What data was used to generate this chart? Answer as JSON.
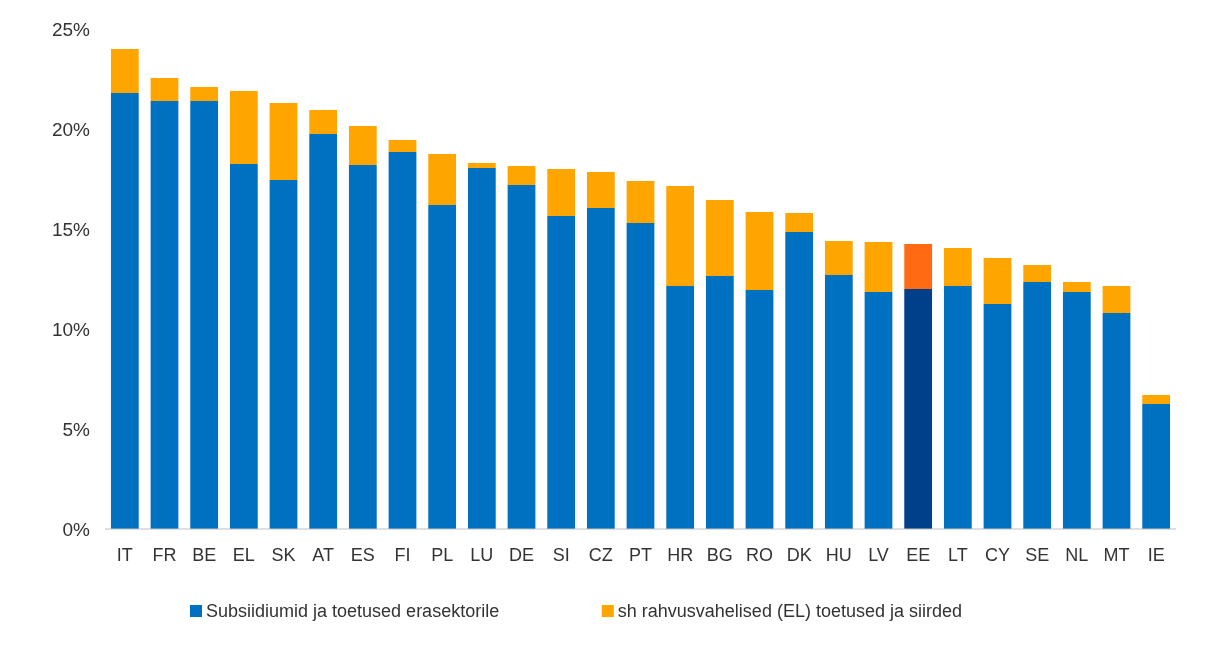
{
  "chart_data": {
    "type": "bar",
    "stacked": true,
    "legend": "bottom",
    "grid": false,
    "categories": [
      "IT",
      "FR",
      "BE",
      "EL",
      "SK",
      "AT",
      "ES",
      "FI",
      "PL",
      "LU",
      "DE",
      "SI",
      "CZ",
      "PT",
      "HR",
      "BG",
      "RO",
      "DK",
      "HU",
      "LV",
      "EE",
      "LT",
      "CY",
      "SE",
      "NL",
      "MT",
      "IE"
    ],
    "series": [
      {
        "name": "Subsiidiumid ja toetused erasektorile",
        "color": "#0070c0",
        "colors": [
          "#0070c0",
          "#0070c0",
          "#0070c0",
          "#0070c0",
          "#0070c0",
          "#0070c0",
          "#0070c0",
          "#0070c0",
          "#0070c0",
          "#0070c0",
          "#0070c0",
          "#0070c0",
          "#0070c0",
          "#0070c0",
          "#0070c0",
          "#0070c0",
          "#0070c0",
          "#0070c0",
          "#0070c0",
          "#0070c0",
          "#003f8a",
          "#0070c0",
          "#0070c0",
          "#0070c0",
          "#0070c0",
          "#0070c0",
          "#0070c0"
        ],
        "values": [
          21.8,
          21.4,
          21.4,
          18.25,
          17.45,
          19.75,
          18.2,
          18.85,
          16.2,
          18.05,
          17.2,
          15.65,
          16.05,
          15.3,
          12.15,
          12.65,
          11.95,
          14.85,
          12.7,
          11.85,
          12.0,
          12.15,
          11.25,
          12.35,
          11.85,
          10.8,
          6.25
        ]
      },
      {
        "name": "sh rahvusvahelised (EL) toetused ja siirded",
        "color": "#ffa500",
        "colors": [
          "#ffa500",
          "#ffa500",
          "#ffa500",
          "#ffa500",
          "#ffa500",
          "#ffa500",
          "#ffa500",
          "#ffa500",
          "#ffa500",
          "#ffa500",
          "#ffa500",
          "#ffa500",
          "#ffa500",
          "#ffa500",
          "#ffa500",
          "#ffa500",
          "#ffa500",
          "#ffa500",
          "#ffa500",
          "#ffa500",
          "#ff6a13",
          "#ffa500",
          "#ffa500",
          "#ffa500",
          "#ffa500",
          "#ffa500",
          "#ffa500"
        ],
        "values": [
          2.2,
          1.15,
          0.7,
          3.65,
          3.85,
          1.2,
          1.95,
          0.6,
          2.55,
          0.25,
          0.95,
          2.35,
          1.8,
          2.1,
          5.0,
          3.8,
          3.9,
          0.95,
          1.7,
          2.5,
          2.25,
          1.9,
          2.3,
          0.85,
          0.5,
          1.35,
          0.45
        ]
      }
    ],
    "ylim": [
      0,
      25
    ],
    "yticks": [
      {
        "value": 0,
        "label": "0%"
      },
      {
        "value": 5,
        "label": "5%"
      },
      {
        "value": 10,
        "label": "10%"
      },
      {
        "value": 15,
        "label": "15%"
      },
      {
        "value": 20,
        "label": "20%"
      },
      {
        "value": 25,
        "label": "25%"
      }
    ]
  }
}
